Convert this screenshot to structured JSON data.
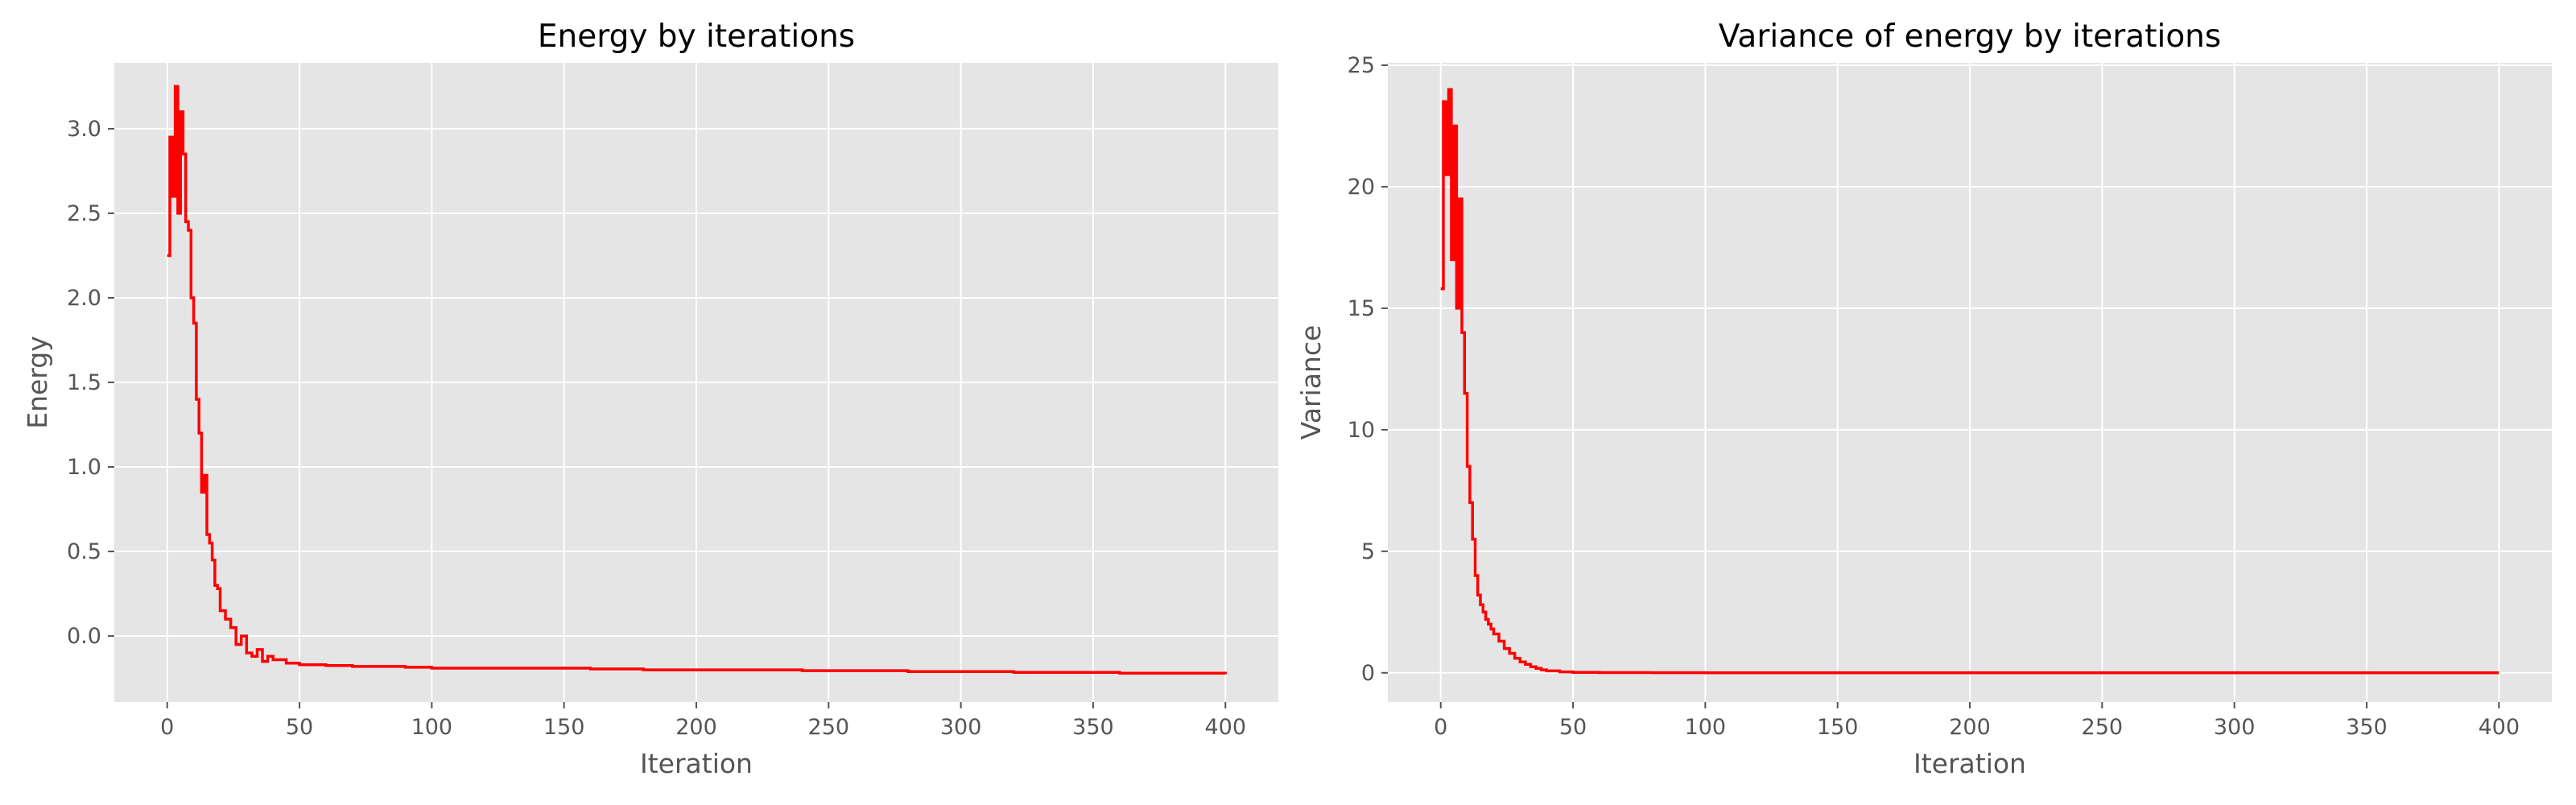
{
  "style": {
    "background": "#ffffff",
    "plot_background": "#e5e5e5",
    "grid_color": "#ffffff",
    "tick_color": "#555555",
    "line_color": "#ff0000"
  },
  "chart_data": [
    {
      "type": "line",
      "title": "Energy by iterations",
      "xlabel": "Iteration",
      "ylabel": "Energy",
      "xlim": [
        -20,
        420
      ],
      "ylim": [
        -0.39,
        3.39
      ],
      "xticks": [
        0,
        50,
        100,
        150,
        200,
        250,
        300,
        350,
        400
      ],
      "yticks": [
        0.0,
        0.5,
        1.0,
        1.5,
        2.0,
        2.5,
        3.0
      ],
      "ytick_labels": [
        "0.0",
        "0.5",
        "1.0",
        "1.5",
        "2.0",
        "2.5",
        "3.0"
      ],
      "grid": true,
      "legend": "none",
      "series": [
        {
          "color": "#ff0000",
          "x": [
            0,
            1,
            2,
            3,
            4,
            5,
            6,
            7,
            8,
            9,
            10,
            11,
            12,
            13,
            14,
            15,
            16,
            17,
            18,
            19,
            20,
            22,
            24,
            26,
            28,
            30,
            32,
            34,
            36,
            38,
            40,
            45,
            50,
            60,
            70,
            80,
            90,
            100,
            120,
            140,
            160,
            180,
            200,
            220,
            240,
            260,
            280,
            300,
            320,
            340,
            360,
            380,
            400
          ],
          "y": [
            2.25,
            2.95,
            2.6,
            3.25,
            2.5,
            3.1,
            2.85,
            2.45,
            2.4,
            2.0,
            1.85,
            1.4,
            1.2,
            0.85,
            0.95,
            0.6,
            0.55,
            0.45,
            0.3,
            0.28,
            0.15,
            0.1,
            0.05,
            -0.05,
            0.0,
            -0.1,
            -0.12,
            -0.08,
            -0.15,
            -0.12,
            -0.14,
            -0.16,
            -0.17,
            -0.175,
            -0.18,
            -0.18,
            -0.185,
            -0.19,
            -0.19,
            -0.19,
            -0.195,
            -0.2,
            -0.2,
            -0.2,
            -0.205,
            -0.205,
            -0.21,
            -0.21,
            -0.215,
            -0.215,
            -0.22,
            -0.22,
            -0.225
          ]
        }
      ]
    },
    {
      "type": "line",
      "title": "Variance of energy by iterations",
      "xlabel": "Iteration",
      "ylabel": "Variance",
      "xlim": [
        -20,
        420
      ],
      "ylim": [
        -1.2,
        25.1
      ],
      "xticks": [
        0,
        50,
        100,
        150,
        200,
        250,
        300,
        350,
        400
      ],
      "yticks": [
        0,
        5,
        10,
        15,
        20,
        25
      ],
      "ytick_labels": [
        "0",
        "5",
        "10",
        "15",
        "20",
        "25"
      ],
      "grid": true,
      "legend": "none",
      "series": [
        {
          "color": "#ff0000",
          "x": [
            0,
            1,
            2,
            3,
            4,
            5,
            6,
            7,
            8,
            9,
            10,
            11,
            12,
            13,
            14,
            15,
            16,
            17,
            18,
            19,
            20,
            22,
            24,
            26,
            28,
            30,
            32,
            34,
            36,
            38,
            40,
            45,
            50,
            60,
            80,
            100,
            150,
            200,
            250,
            300,
            350,
            400
          ],
          "y": [
            15.8,
            23.5,
            20.5,
            24.0,
            17.0,
            22.5,
            15.0,
            19.5,
            14.0,
            11.5,
            8.5,
            7.0,
            5.5,
            4.0,
            3.2,
            2.8,
            2.5,
            2.2,
            2.0,
            1.8,
            1.6,
            1.3,
            1.0,
            0.8,
            0.6,
            0.45,
            0.35,
            0.25,
            0.18,
            0.12,
            0.08,
            0.04,
            0.02,
            0.01,
            0.005,
            0.003,
            0.002,
            0.001,
            0.001,
            0.001,
            0.001,
            0.001
          ]
        }
      ]
    }
  ]
}
